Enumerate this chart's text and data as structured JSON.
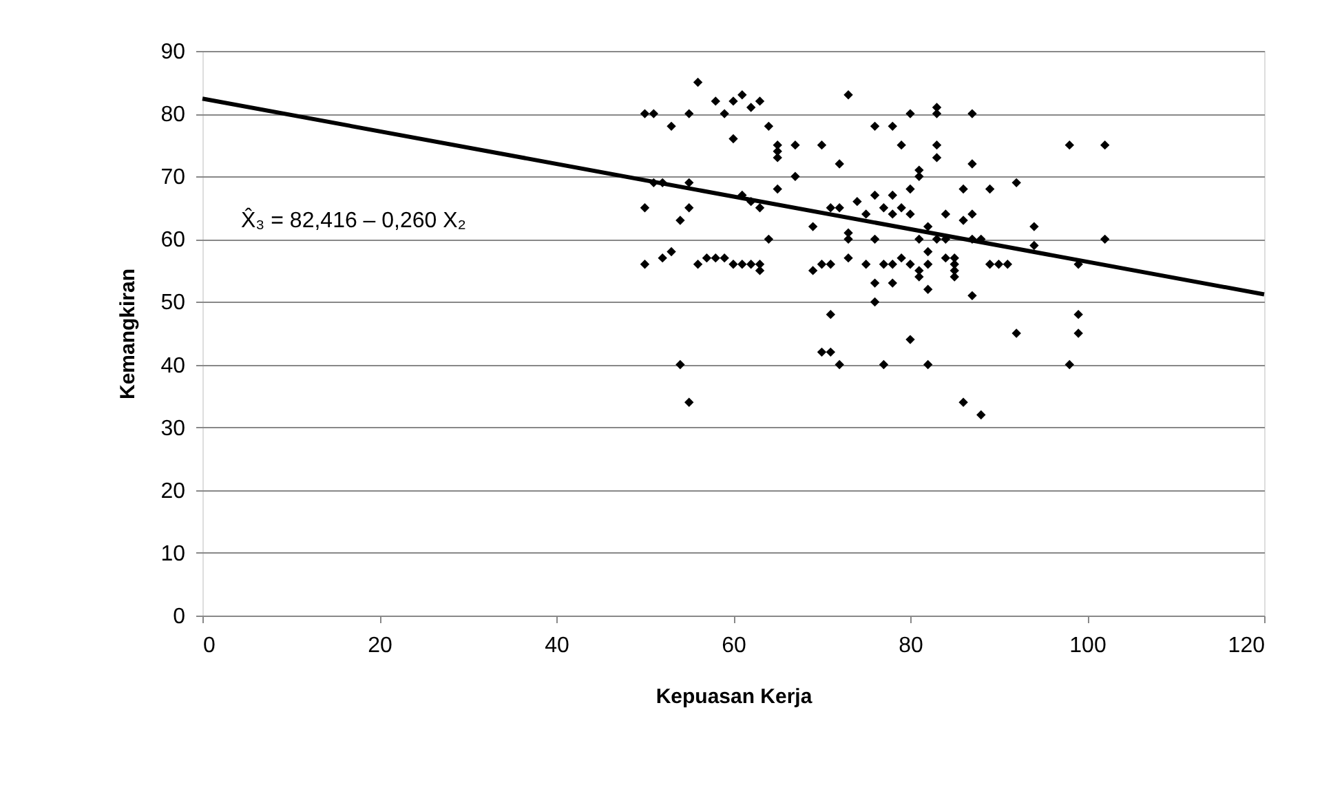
{
  "chart_data": {
    "type": "scatter",
    "xlabel": "Kepuasan Kerja",
    "ylabel": "Kemangkiran",
    "xlim": [
      0,
      120
    ],
    "xticks": [
      0,
      20,
      40,
      60,
      80,
      100,
      120
    ],
    "ylim": [
      0,
      90
    ],
    "yticks": [
      0,
      10,
      20,
      30,
      40,
      50,
      60,
      70,
      80,
      90
    ],
    "grid": "y",
    "marker": "diamond",
    "annotations": [
      "X̂₃ = 82,416 – 0,260 X₂"
    ],
    "series": [
      {
        "color": "#000000",
        "x": [
          50,
          51,
          50,
          50,
          51,
          52,
          53,
          52,
          53,
          54,
          54,
          55,
          55,
          55,
          55,
          56,
          56,
          57,
          58,
          58,
          59,
          59,
          60,
          60,
          60,
          61,
          61,
          61,
          62,
          62,
          62,
          63,
          63,
          63,
          63,
          64,
          64,
          65,
          65,
          65,
          65,
          67,
          67,
          69,
          69,
          70,
          70,
          70,
          71,
          71,
          71,
          71,
          72,
          72,
          72,
          73,
          73,
          73,
          73,
          74,
          75,
          75,
          76,
          76,
          76,
          76,
          76,
          77,
          77,
          77,
          78,
          78,
          78,
          78,
          78,
          79,
          79,
          79,
          80,
          80,
          80,
          80,
          80,
          81,
          81,
          81,
          81,
          81,
          82,
          82,
          82,
          82,
          82,
          83,
          83,
          83,
          83,
          83,
          84,
          84,
          84,
          85,
          85,
          85,
          85,
          86,
          86,
          86,
          87,
          87,
          87,
          87,
          87,
          88,
          88,
          89,
          89,
          90,
          91,
          92,
          92,
          94,
          94,
          98,
          98,
          99,
          99,
          99,
          102,
          102
        ],
        "values": [
          80,
          80,
          65,
          56,
          69,
          69,
          78,
          57,
          58,
          63,
          40,
          34,
          69,
          65,
          80,
          85,
          56,
          57,
          82,
          57,
          80,
          57,
          76,
          82,
          56,
          83,
          56,
          67,
          81,
          66,
          56,
          82,
          65,
          56,
          55,
          78,
          60,
          75,
          73,
          74,
          68,
          75,
          70,
          55,
          62,
          75,
          56,
          42,
          42,
          48,
          65,
          56,
          72,
          65,
          40,
          83,
          61,
          60,
          57,
          66,
          56,
          64,
          78,
          67,
          60,
          53,
          50,
          40,
          65,
          56,
          78,
          67,
          64,
          56,
          53,
          75,
          65,
          57,
          80,
          68,
          64,
          56,
          44,
          71,
          70,
          60,
          55,
          54,
          62,
          58,
          52,
          40,
          56,
          81,
          80,
          75,
          73,
          60,
          64,
          57,
          60,
          57,
          55,
          54,
          56,
          68,
          63,
          34,
          80,
          72,
          64,
          51,
          60,
          60,
          32,
          68,
          56,
          56,
          56,
          69,
          45,
          62,
          59,
          75,
          40,
          56,
          48,
          45,
          75,
          60
        ]
      },
      {
        "type": "line",
        "color": "#000000",
        "x": [
          0,
          120
        ],
        "values": [
          82.4,
          51.2
        ],
        "marker": "none"
      }
    ]
  }
}
